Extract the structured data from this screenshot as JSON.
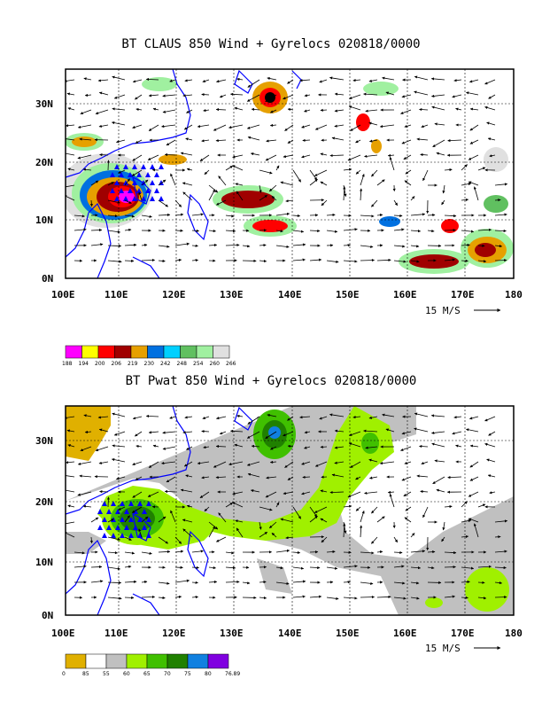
{
  "panels": [
    {
      "id": "claus",
      "title": "BT CLAUS 850 Wind + Gyrelocs 020818/0000",
      "lon_ticks": [
        "100E",
        "110E",
        "120E",
        "130E",
        "140E",
        "150E",
        "160E",
        "170E",
        "180"
      ],
      "lat_ticks": [
        "30N",
        "20N",
        "10N",
        "0N"
      ],
      "vector_label": "15 M/S",
      "legend": {
        "labels": [
          "188",
          "194",
          "200",
          "206",
          "219",
          "230",
          "242",
          "248",
          "254",
          "260",
          "266"
        ],
        "colors": [
          "#ff00ff",
          "#ffff00",
          "#ff0000",
          "#a00000",
          "#e6a000",
          "#0070e0",
          "#00d0ff",
          "#60c060",
          "#a0f0a0",
          "#e0e0e0"
        ]
      }
    },
    {
      "id": "pwat",
      "title": "BT Pwat 850 Wind + Gyrelocs 020818/0000",
      "lon_ticks": [
        "100E",
        "110E",
        "120E",
        "130E",
        "140E",
        "150E",
        "160E",
        "170E",
        "180"
      ],
      "lat_ticks": [
        "30N",
        "20N",
        "10N",
        "0N"
      ],
      "vector_label": "15 M/S",
      "legend": {
        "labels": [
          "0",
          "85",
          "55",
          "60",
          "65",
          "70",
          "75",
          "80",
          "76.89"
        ],
        "colors": [
          "#e0b000",
          "#ffffff",
          "#c0c0c0",
          "#a0f000",
          "#40c000",
          "#208000",
          "#1080e0",
          "#8000e0"
        ]
      }
    }
  ],
  "colors": {
    "coast": "#0000ff",
    "gyre_marker": "#0000ff",
    "frame": "#000000"
  }
}
